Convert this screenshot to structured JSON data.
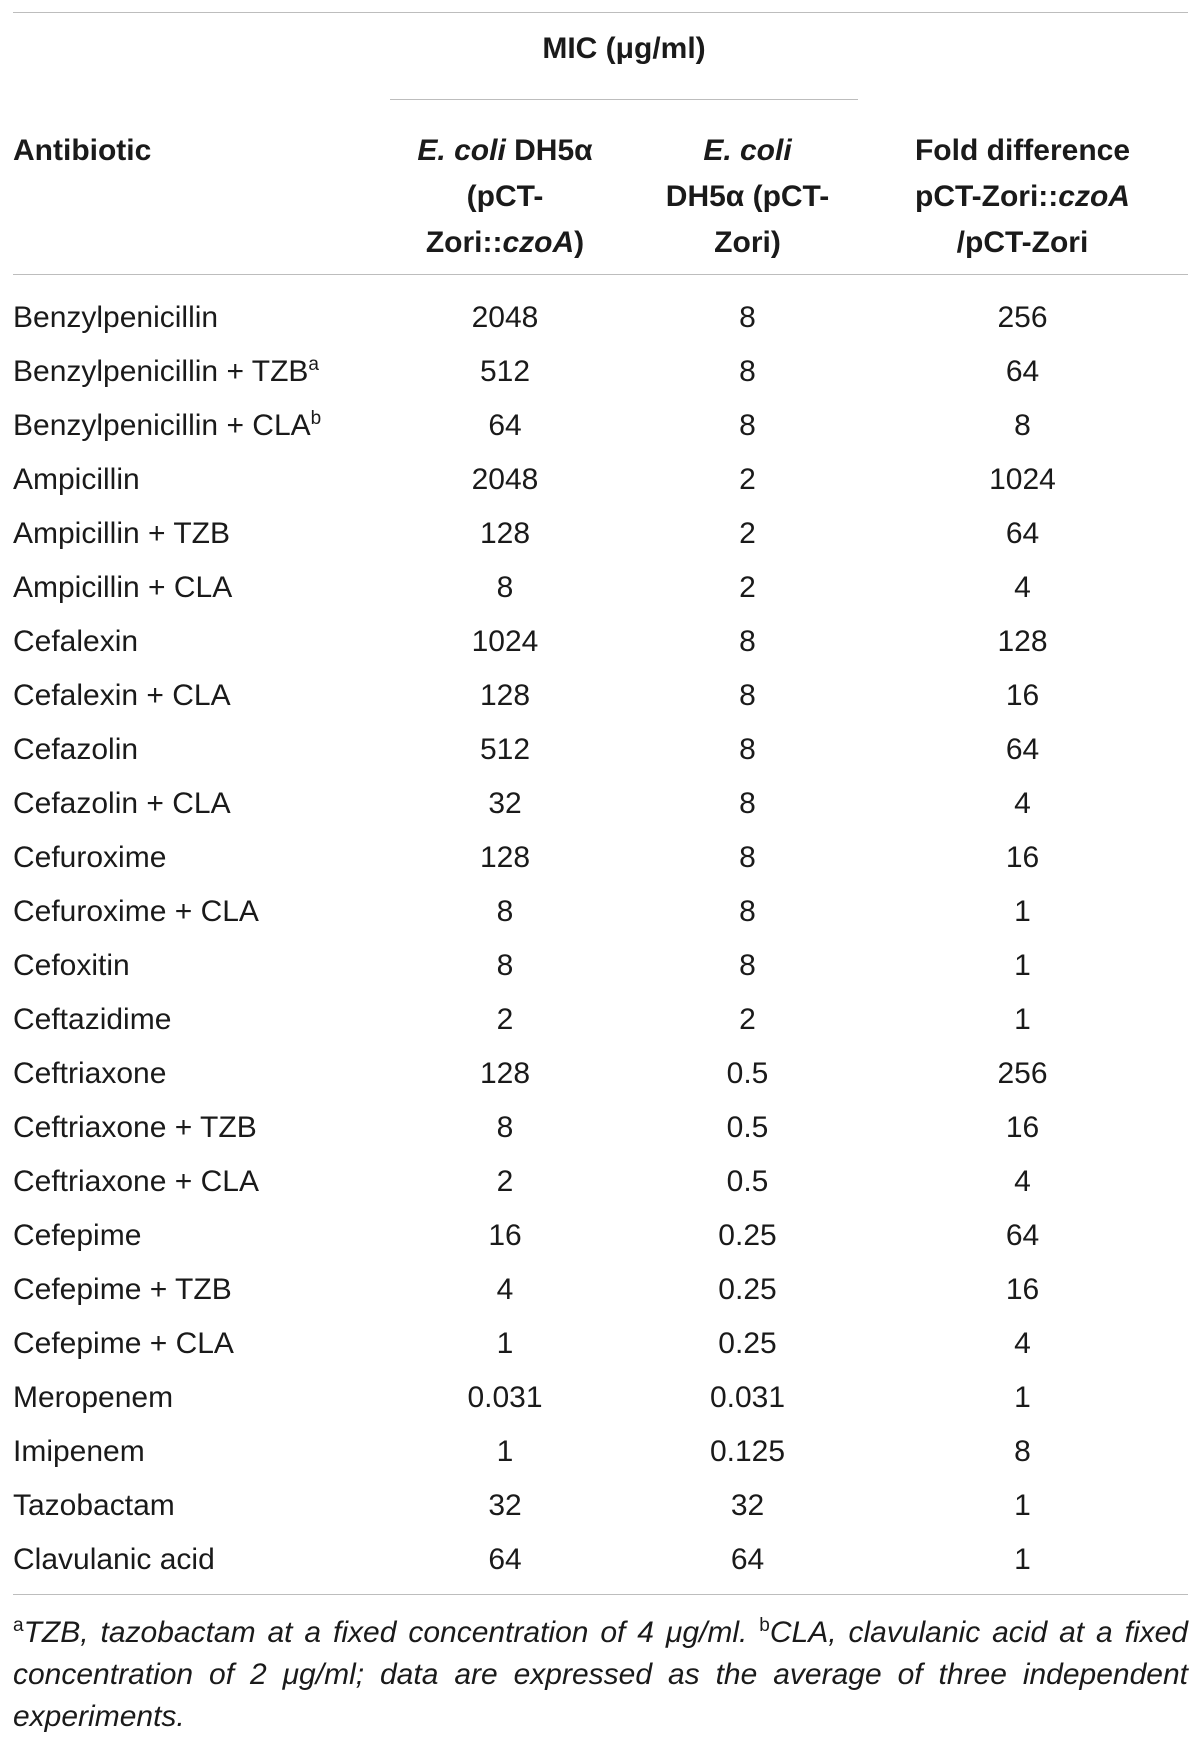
{
  "table": {
    "mic_header": "MIC (μg/ml)",
    "headers": {
      "antibiotic": "Antibiotic",
      "col1": {
        "italic": "E. coli",
        "rest": " DH5α (pCT-Zori::",
        "italic2": "czoA",
        "end": ")"
      },
      "col2": {
        "italic": "E. coli",
        "rest": "DH5α (pCT-Zori)"
      },
      "col3": {
        "line1": "Fold difference",
        "line2a": "pCT-Zori::",
        "line2b": "czoA",
        "line3": "/pCT-Zori"
      }
    },
    "rows": [
      {
        "name": "Benzylpenicillin",
        "sup": "",
        "v1": "2048",
        "v2": "8",
        "v3": "256"
      },
      {
        "name": "Benzylpenicillin + TZB",
        "sup": "a",
        "v1": "512",
        "v2": "8",
        "v3": "64"
      },
      {
        "name": "Benzylpenicillin + CLA",
        "sup": "b",
        "v1": "64",
        "v2": "8",
        "v3": "8"
      },
      {
        "name": "Ampicillin",
        "sup": "",
        "v1": "2048",
        "v2": "2",
        "v3": "1024"
      },
      {
        "name": "Ampicillin + TZB",
        "sup": "",
        "v1": "128",
        "v2": "2",
        "v3": "64"
      },
      {
        "name": "Ampicillin + CLA",
        "sup": "",
        "v1": "8",
        "v2": "2",
        "v3": "4"
      },
      {
        "name": "Cefalexin",
        "sup": "",
        "v1": "1024",
        "v2": "8",
        "v3": "128"
      },
      {
        "name": "Cefalexin + CLA",
        "sup": "",
        "v1": "128",
        "v2": "8",
        "v3": "16"
      },
      {
        "name": "Cefazolin",
        "sup": "",
        "v1": "512",
        "v2": "8",
        "v3": "64"
      },
      {
        "name": "Cefazolin + CLA",
        "sup": "",
        "v1": "32",
        "v2": "8",
        "v3": "4"
      },
      {
        "name": "Cefuroxime",
        "sup": "",
        "v1": "128",
        "v2": "8",
        "v3": "16"
      },
      {
        "name": "Cefuroxime + CLA",
        "sup": "",
        "v1": "8",
        "v2": "8",
        "v3": "1"
      },
      {
        "name": "Cefoxitin",
        "sup": "",
        "v1": "8",
        "v2": "8",
        "v3": "1"
      },
      {
        "name": "Ceftazidime",
        "sup": "",
        "v1": "2",
        "v2": "2",
        "v3": "1"
      },
      {
        "name": "Ceftriaxone",
        "sup": "",
        "v1": "128",
        "v2": "0.5",
        "v3": "256"
      },
      {
        "name": "Ceftriaxone + TZB",
        "sup": "",
        "v1": "8",
        "v2": "0.5",
        "v3": "16"
      },
      {
        "name": "Ceftriaxone + CLA",
        "sup": "",
        "v1": "2",
        "v2": "0.5",
        "v3": "4"
      },
      {
        "name": "Cefepime",
        "sup": "",
        "v1": "16",
        "v2": "0.25",
        "v3": "64"
      },
      {
        "name": "Cefepime + TZB",
        "sup": "",
        "v1": "4",
        "v2": "0.25",
        "v3": "16"
      },
      {
        "name": "Cefepime + CLA",
        "sup": "",
        "v1": "1",
        "v2": "0.25",
        "v3": "4"
      },
      {
        "name": "Meropenem",
        "sup": "",
        "v1": "0.031",
        "v2": "0.031",
        "v3": "1"
      },
      {
        "name": "Imipenem",
        "sup": "",
        "v1": "1",
        "v2": "0.125",
        "v3": "8"
      },
      {
        "name": "Tazobactam",
        "sup": "",
        "v1": "32",
        "v2": "32",
        "v3": "1"
      },
      {
        "name": "Clavulanic acid",
        "sup": "",
        "v1": "64",
        "v2": "64",
        "v3": "1"
      }
    ]
  },
  "footnote": {
    "sup_a": "a",
    "text_a": "TZB, tazobactam at a fixed concentration of 4 μg/ml. ",
    "sup_b": "b",
    "text_b": "CLA, clavulanic acid at a fixed concentration of 2 μg/ml; data are expressed as the average of three independent experiments."
  }
}
